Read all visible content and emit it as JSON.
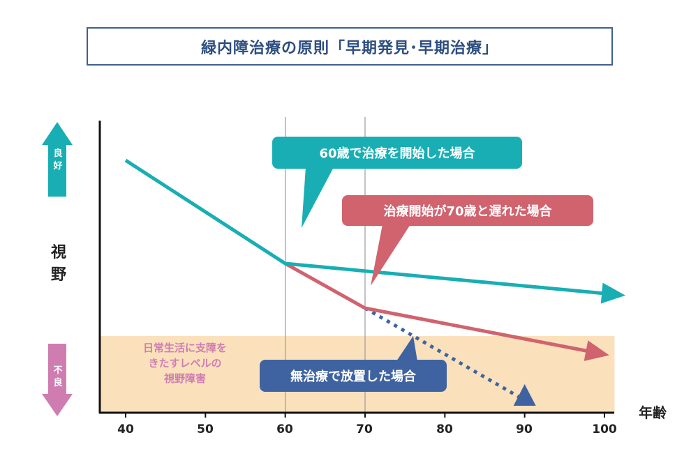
{
  "title": "緑内障治療の原則「早期発見･早期治療」",
  "chart_data": {
    "type": "line",
    "ylabel": "視野",
    "xlabel": "年齢",
    "x_ticks": [
      "40",
      "50",
      "60",
      "70",
      "80",
      "90",
      "100"
    ],
    "xlim": [
      37,
      101
    ],
    "y_arrows": {
      "up": "良好",
      "down": "不良"
    },
    "impaired_zone_label": [
      "日常生活に支障を",
      "きたすレベルの",
      "視野障害"
    ],
    "series": [
      {
        "name": "60歳で治療を開始した場合",
        "color": "#18aeb3",
        "style": "solid",
        "x": [
          40,
          60,
          101
        ],
        "y": [
          90,
          53,
          42
        ]
      },
      {
        "name": "治療開始が70歳と遅れた場合",
        "color": "#d0636e",
        "style": "solid",
        "x": [
          60,
          70,
          99
        ],
        "y": [
          53,
          37,
          21
        ]
      },
      {
        "name": "無治療で放置した場合",
        "color": "#3f63a0",
        "style": "dotted",
        "x": [
          70,
          90
        ],
        "y": [
          37,
          4
        ]
      }
    ],
    "reference_lines_x": [
      60,
      70
    ],
    "impaired_threshold_y": 27,
    "colors": {
      "zone": "#fae1bc",
      "teal": "#18aeb3",
      "red": "#d0636e",
      "blue": "#3f63a0",
      "pink": "#cf7db1"
    }
  }
}
